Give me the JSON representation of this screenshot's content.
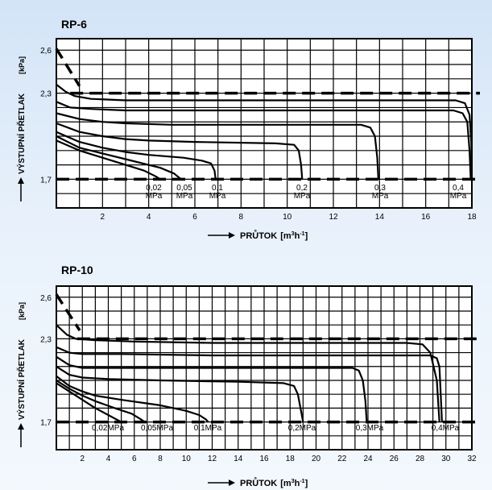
{
  "chart_data": [
    {
      "type": "line",
      "title": "RP-6",
      "xlabel": "PRŮTOK",
      "xunit_base": "[m",
      "xunit_exp1": "3",
      "xunit_mid": "h",
      "xunit_exp2": "-1",
      "xunit_end": "]",
      "ylabel": "VÝSTUPNÍ PŘETLAK",
      "yunit": "[kPa]",
      "xlim": [
        0,
        18
      ],
      "ylim": [
        1.5,
        2.68
      ],
      "xticks": [
        2,
        4,
        6,
        8,
        10,
        12,
        14,
        16,
        18
      ],
      "yticks": [
        1.7,
        2.3,
        2.6
      ],
      "ytick_labels": [
        "1,7",
        "2,3",
        "2,6"
      ],
      "reference_lines": [
        2.3,
        1.7
      ],
      "series": [
        {
          "name_top": "0,02",
          "name_bottom": "MPa",
          "points": [
            [
              0,
              1.97
            ],
            [
              1,
              1.9
            ],
            [
              2,
              1.85
            ],
            [
              3,
              1.8
            ],
            [
              3.8,
              1.76
            ],
            [
              4.3,
              1.72
            ],
            [
              4.5,
              1.7
            ]
          ]
        },
        {
          "name_top": "0,05",
          "name_bottom": "MPa",
          "points": [
            [
              0,
              2.0
            ],
            [
              1,
              1.92
            ],
            [
              2,
              1.88
            ],
            [
              3,
              1.84
            ],
            [
              4.5,
              1.78
            ],
            [
              5.1,
              1.74
            ],
            [
              5.4,
              1.7
            ]
          ]
        },
        {
          "name_top": "0,1",
          "name_bottom": "MPa",
          "points": [
            [
              0,
              2.03
            ],
            [
              1,
              1.96
            ],
            [
              2,
              1.92
            ],
            [
              3,
              1.89
            ],
            [
              4,
              1.87
            ],
            [
              5.5,
              1.85
            ],
            [
              6.3,
              1.83
            ],
            [
              6.7,
              1.81
            ],
            [
              6.85,
              1.76
            ],
            [
              6.9,
              1.7
            ]
          ]
        },
        {
          "name_top": "0,2",
          "name_bottom": "MPa",
          "points": [
            [
              0,
              2.09
            ],
            [
              1,
              2.03
            ],
            [
              2,
              2.0
            ],
            [
              3,
              1.98
            ],
            [
              4,
              1.97
            ],
            [
              6,
              1.96
            ],
            [
              9.5,
              1.95
            ],
            [
              10.3,
              1.94
            ],
            [
              10.5,
              1.9
            ],
            [
              10.6,
              1.8
            ],
            [
              10.65,
              1.7
            ]
          ]
        },
        {
          "name_top": "0,3",
          "name_bottom": "MPa",
          "points": [
            [
              0,
              2.16
            ],
            [
              1,
              2.12
            ],
            [
              2,
              2.1
            ],
            [
              3,
              2.09
            ],
            [
              5,
              2.08
            ],
            [
              9,
              2.08
            ],
            [
              12,
              2.08
            ],
            [
              13.2,
              2.08
            ],
            [
              13.6,
              2.06
            ],
            [
              13.8,
              2.0
            ],
            [
              13.9,
              1.85
            ],
            [
              13.95,
              1.7
            ]
          ]
        },
        {
          "name_top": "0,4",
          "name_bottom": "MPa",
          "points": [
            [
              0,
              2.24
            ],
            [
              0.6,
              2.2
            ],
            [
              1.5,
              2.19
            ],
            [
              3,
              2.18
            ],
            [
              8,
              2.18
            ],
            [
              14,
              2.18
            ],
            [
              17.2,
              2.18
            ],
            [
              17.6,
              2.16
            ],
            [
              17.8,
              2.1
            ],
            [
              17.9,
              1.9
            ],
            [
              17.95,
              1.7
            ]
          ]
        },
        {
          "name_top": "",
          "name_bottom": "",
          "points": [
            [
              0,
              2.36
            ],
            [
              0.4,
              2.31
            ],
            [
              0.8,
              2.28
            ],
            [
              1.5,
              2.26
            ],
            [
              3,
              2.25
            ],
            [
              8,
              2.25
            ],
            [
              14,
              2.25
            ],
            [
              17.3,
              2.25
            ],
            [
              17.7,
              2.23
            ],
            [
              17.9,
              2.15
            ],
            [
              17.98,
              1.95
            ],
            [
              18,
              1.7
            ]
          ]
        }
      ],
      "dash_segment": [
        [
          0,
          2.61
        ],
        [
          1,
          2.35
        ]
      ]
    },
    {
      "type": "line",
      "title": "RP-10",
      "xlabel": "PRŮTOK",
      "xunit_base": "[m",
      "xunit_exp1": "3",
      "xunit_mid": "h",
      "xunit_exp2": "-1",
      "xunit_end": "]",
      "ylabel": "VÝSTUPNÍ PŘETLAK",
      "yunit": "[kPa]",
      "xlim": [
        0,
        32
      ],
      "ylim": [
        1.5,
        2.68
      ],
      "xticks": [
        2,
        4,
        6,
        8,
        10,
        12,
        14,
        16,
        18,
        20,
        22,
        24,
        26,
        28,
        30,
        32
      ],
      "yticks": [
        1.7,
        2.3,
        2.6
      ],
      "ytick_labels": [
        "1,7",
        "2,3",
        "2,6"
      ],
      "reference_lines": [
        2.3,
        1.7
      ],
      "series": [
        {
          "name_top": "0,02MPa",
          "name_bottom": "",
          "points": [
            [
              0,
              1.98
            ],
            [
              1,
              1.92
            ],
            [
              2,
              1.86
            ],
            [
              3,
              1.8
            ],
            [
              4,
              1.75
            ],
            [
              4.6,
              1.72
            ],
            [
              5,
              1.7
            ]
          ]
        },
        {
          "name_top": "0,05MPa",
          "name_bottom": "",
          "points": [
            [
              0,
              2.0
            ],
            [
              1,
              1.94
            ],
            [
              2,
              1.89
            ],
            [
              3,
              1.85
            ],
            [
              4.5,
              1.8
            ],
            [
              5.8,
              1.76
            ],
            [
              6.5,
              1.72
            ],
            [
              6.8,
              1.7
            ]
          ]
        },
        {
          "name_top": "0,1MPa",
          "name_bottom": "",
          "points": [
            [
              0,
              2.03
            ],
            [
              1,
              1.96
            ],
            [
              2,
              1.92
            ],
            [
              3,
              1.89
            ],
            [
              5,
              1.86
            ],
            [
              8,
              1.82
            ],
            [
              10,
              1.78
            ],
            [
              11,
              1.75
            ],
            [
              11.5,
              1.72
            ],
            [
              11.7,
              1.7
            ]
          ]
        },
        {
          "name_top": "0,2MPa",
          "name_bottom": "",
          "points": [
            [
              0,
              2.1
            ],
            [
              1,
              2.04
            ],
            [
              2,
              2.02
            ],
            [
              4,
              2.01
            ],
            [
              8,
              2.0
            ],
            [
              14,
              1.99
            ],
            [
              17.5,
              1.98
            ],
            [
              18.3,
              1.96
            ],
            [
              18.6,
              1.9
            ],
            [
              18.8,
              1.8
            ],
            [
              19,
              1.7
            ]
          ]
        },
        {
          "name_top": "0,3MPa",
          "name_bottom": "",
          "points": [
            [
              0,
              2.17
            ],
            [
              1,
              2.11
            ],
            [
              2,
              2.09
            ],
            [
              4,
              2.09
            ],
            [
              10,
              2.09
            ],
            [
              16,
              2.09
            ],
            [
              22.8,
              2.09
            ],
            [
              23.3,
              2.07
            ],
            [
              23.6,
              2.0
            ],
            [
              23.8,
              1.85
            ],
            [
              23.9,
              1.7
            ]
          ]
        },
        {
          "name_top": "0,4MPa",
          "name_bottom": "",
          "points": [
            [
              0,
              2.24
            ],
            [
              1,
              2.2
            ],
            [
              2,
              2.19
            ],
            [
              5,
              2.19
            ],
            [
              12,
              2.18
            ],
            [
              20,
              2.18
            ],
            [
              28.8,
              2.18
            ],
            [
              29.3,
              2.16
            ],
            [
              29.5,
              2.1
            ],
            [
              29.6,
              1.9
            ],
            [
              29.7,
              1.7
            ]
          ]
        },
        {
          "name_top": "",
          "name_bottom": "",
          "points": [
            [
              0,
              2.4
            ],
            [
              0.8,
              2.33
            ],
            [
              1.5,
              2.3
            ],
            [
              3,
              2.29
            ],
            [
              6,
              2.28
            ],
            [
              12,
              2.27
            ],
            [
              20,
              2.27
            ],
            [
              27,
              2.27
            ],
            [
              28.2,
              2.26
            ],
            [
              28.8,
              2.2
            ],
            [
              29.3,
              2.0
            ],
            [
              29.5,
              1.7
            ]
          ]
        }
      ],
      "dash_segment": [
        [
          0,
          2.62
        ],
        [
          1.8,
          2.36
        ]
      ]
    }
  ]
}
